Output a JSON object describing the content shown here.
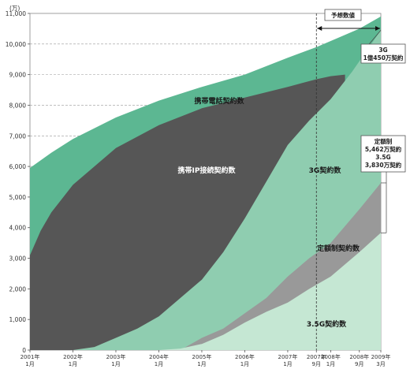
{
  "chart_data": {
    "type": "area",
    "unit": "(万)",
    "ylim": [
      0,
      11000
    ],
    "yticks": [
      0,
      1000,
      2000,
      3000,
      4000,
      5000,
      6000,
      7000,
      8000,
      9000,
      10000,
      11000
    ],
    "ytick_labels": [
      "0",
      "1,000",
      "2,000",
      "3,000",
      "4,000",
      "5,000",
      "6,000",
      "7,000",
      "8,000",
      "9,000",
      "10,000",
      "11,000"
    ],
    "x_ticks": [
      {
        "t": 0,
        "l1": "2001年",
        "l2": "1月"
      },
      {
        "t": 12,
        "l1": "2002年",
        "l2": "1月"
      },
      {
        "t": 24,
        "l1": "2003年",
        "l2": "1月"
      },
      {
        "t": 36,
        "l1": "2004年",
        "l2": "1月"
      },
      {
        "t": 48,
        "l1": "2005年",
        "l2": "1月"
      },
      {
        "t": 60,
        "l1": "2006年",
        "l2": "1月"
      },
      {
        "t": 72,
        "l1": "2007年",
        "l2": "1月"
      },
      {
        "t": 80,
        "l1": "2007年",
        "l2": "9月"
      },
      {
        "t": 84,
        "l1": "2008年",
        "l2": "1月"
      },
      {
        "t": 92,
        "l1": "2008年",
        "l2": "9月"
      },
      {
        "t": 98,
        "l1": "2009年",
        "l2": "3月"
      }
    ],
    "forecast_start": 80,
    "series": [
      {
        "name": "携帯電話契約数",
        "color": "#5cb792",
        "points": [
          [
            0,
            5950
          ],
          [
            6,
            6450
          ],
          [
            12,
            6900
          ],
          [
            24,
            7600
          ],
          [
            36,
            8150
          ],
          [
            48,
            8600
          ],
          [
            60,
            9000
          ],
          [
            72,
            9550
          ],
          [
            80,
            9900
          ],
          [
            86,
            10200
          ],
          [
            92,
            10500
          ],
          [
            98,
            10900
          ]
        ]
      },
      {
        "name": "携帯IP接続契約数",
        "color": "#565656",
        "points": [
          [
            0,
            3100
          ],
          [
            3,
            3900
          ],
          [
            6,
            4500
          ],
          [
            12,
            5400
          ],
          [
            18,
            6000
          ],
          [
            24,
            6600
          ],
          [
            36,
            7350
          ],
          [
            48,
            7900
          ],
          [
            60,
            8250
          ],
          [
            72,
            8600
          ],
          [
            80,
            8850
          ],
          [
            84,
            8950
          ],
          [
            88,
            9000
          ]
        ]
      },
      {
        "name": "3G契約数",
        "color": "#8fcdb0",
        "points": [
          [
            12,
            0
          ],
          [
            18,
            100
          ],
          [
            24,
            400
          ],
          [
            30,
            700
          ],
          [
            36,
            1100
          ],
          [
            42,
            1700
          ],
          [
            48,
            2300
          ],
          [
            54,
            3200
          ],
          [
            60,
            4300
          ],
          [
            66,
            5500
          ],
          [
            72,
            6700
          ],
          [
            78,
            7500
          ],
          [
            84,
            8200
          ],
          [
            90,
            9100
          ],
          [
            98,
            10450
          ]
        ]
      },
      {
        "name": "定額制契約数",
        "color": "#999999",
        "points": [
          [
            42,
            0
          ],
          [
            48,
            400
          ],
          [
            54,
            700
          ],
          [
            60,
            1200
          ],
          [
            66,
            1700
          ],
          [
            72,
            2400
          ],
          [
            78,
            3000
          ],
          [
            84,
            3500
          ],
          [
            92,
            4600
          ],
          [
            98,
            5462
          ]
        ]
      },
      {
        "name": "3.5G契約数",
        "color": "#c5e7d3",
        "points": [
          [
            36,
            0
          ],
          [
            42,
            50
          ],
          [
            48,
            200
          ],
          [
            54,
            500
          ],
          [
            60,
            900
          ],
          [
            66,
            1250
          ],
          [
            72,
            1550
          ],
          [
            78,
            2000
          ],
          [
            84,
            2400
          ],
          [
            92,
            3200
          ],
          [
            98,
            3830
          ]
        ]
      }
    ],
    "annotations": {
      "forecast_label": "予想数値",
      "g3_box": [
        "3G",
        "1億450万契約"
      ],
      "flat_box": [
        "定額制",
        "5,462万契約",
        "3.5G",
        "3,830万契約"
      ],
      "area_labels": {
        "mobile": "携帯電話契約数",
        "ip": "携帯IP接続契約数",
        "g3": "3G契約数",
        "flat": "定額制契約数",
        "g35": "3.5G契約数"
      }
    }
  }
}
